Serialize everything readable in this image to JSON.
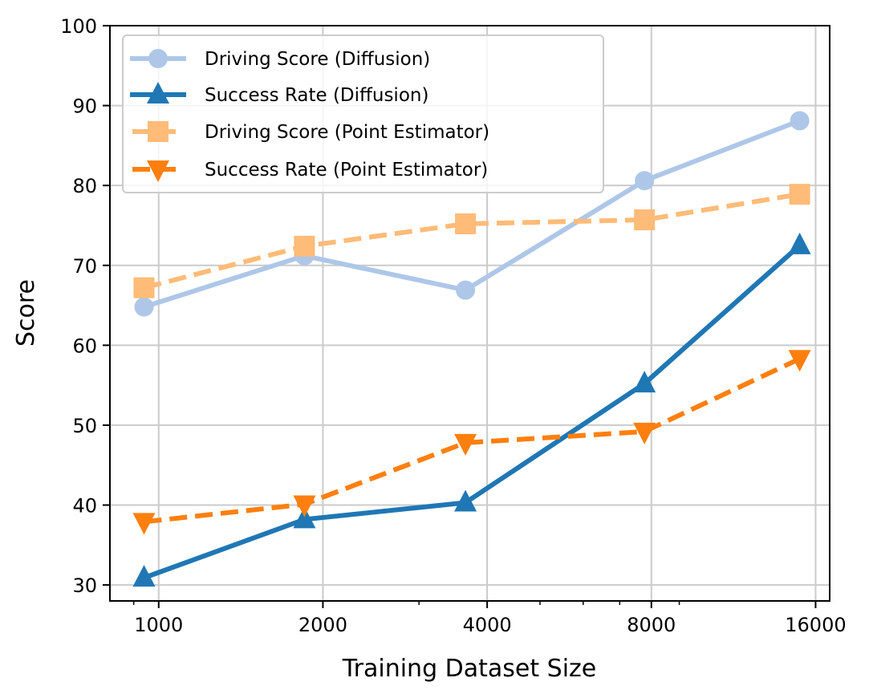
{
  "chart_data": {
    "type": "line",
    "title": "",
    "xlabel": "Training Dataset Size",
    "ylabel": "Score",
    "x_scale": "log2",
    "xlim": [
      814,
      16980
    ],
    "ylim": [
      28,
      100
    ],
    "grid": true,
    "legend_position": "top-left",
    "x_ticks": [
      1000,
      2000,
      4000,
      8000,
      16000
    ],
    "x_tick_labels": [
      "1000",
      "2000",
      "4000",
      "8000",
      "16000"
    ],
    "x_minor_ticks": [
      900,
      3000,
      5000,
      6000,
      7000,
      9000
    ],
    "y_ticks": [
      30,
      40,
      50,
      60,
      70,
      80,
      90,
      100
    ],
    "y_tick_labels": [
      "30",
      "40",
      "50",
      "60",
      "70",
      "80",
      "90",
      "100"
    ],
    "x": [
      940,
      1850,
      3650,
      7770,
      14960
    ],
    "series": [
      {
        "name": "Driving Score (Diffusion)",
        "values": [
          64.8,
          71.2,
          66.9,
          80.6,
          88.1
        ],
        "color": "#aec7e8",
        "marker": "circle",
        "linestyle": "solid"
      },
      {
        "name": "Success Rate (Diffusion)",
        "values": [
          30.9,
          38.2,
          40.3,
          55.2,
          72.5
        ],
        "color": "#1f77b4",
        "marker": "triangle-up",
        "linestyle": "solid"
      },
      {
        "name": "Driving Score (Point Estimator)",
        "values": [
          67.2,
          72.4,
          75.2,
          75.7,
          78.9
        ],
        "color": "#ffbb78",
        "marker": "square",
        "linestyle": "dashed"
      },
      {
        "name": "Success Rate (Point Estimator)",
        "values": [
          37.9,
          40.1,
          47.8,
          49.2,
          58.3
        ],
        "color": "#ff7f0e",
        "marker": "triangle-down",
        "linestyle": "dashed"
      }
    ]
  }
}
